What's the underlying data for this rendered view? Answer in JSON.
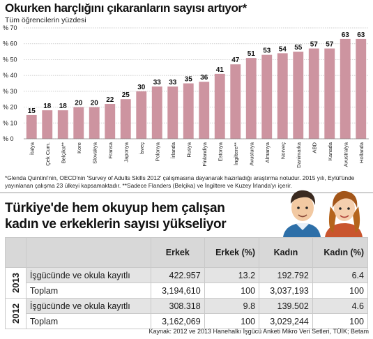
{
  "header": {
    "title": "Okurken harçlığını çıkaranların sayısı artıyor*",
    "subtitle": "Tüm öğrencilerin yüzdesi"
  },
  "chart_data": {
    "type": "bar",
    "categories": [
      "İtalya",
      "Çek Cum.",
      "Belçika**",
      "Kore",
      "Slovakya",
      "Fransa",
      "Japonya",
      "İsveç",
      "Polonya",
      "İrlanda",
      "Rusya",
      "Finlandiya",
      "Estonya",
      "İngiltere**",
      "Avusturya",
      "Almanya",
      "Norveç",
      "Danimarka",
      "ABD",
      "Kanada",
      "Avustralya",
      "Hollanda"
    ],
    "values": [
      15,
      18,
      18,
      20,
      20,
      22,
      25,
      30,
      33,
      33,
      35,
      36,
      41,
      47,
      51,
      53,
      54,
      55,
      57,
      57,
      63,
      63
    ],
    "ylim": [
      0,
      70
    ],
    "yticks": [
      0,
      10,
      20,
      30,
      40,
      50,
      60,
      70
    ],
    "ytick_prefix": "% ",
    "grid": true,
    "colors": {
      "bar": "#cd94a0",
      "grid": "#bdbdbd"
    }
  },
  "footnote": "*Glenda Quintini'nin, OECD'nin 'Survey of Adults Skills 2012' çalışmasına dayanarak hazırladığı araştırma notudur. 2015 yılı, Eylül'ünde yayınlanan çalışma 23 ülkeyi kapsamaktadır. **Sadece Flanders (Belçika) ve İngiltere ve Kuzey İrlanda'yı içerir.",
  "section2": {
    "title_line1": "Türkiye'de hem okuyup hem çalışan",
    "title_line2": "kadın ve erkeklerin sayısı yükseliyor"
  },
  "table": {
    "headers": {
      "erkek": "Erkek",
      "erkek_pct": "Erkek (%)",
      "kadin": "Kadın",
      "kadin_pct": "Kadın (%)"
    },
    "groups": [
      {
        "year": "2013",
        "rows": [
          {
            "label": "İşgücünde ve okula kayıtlı",
            "erkek": "422.957",
            "erkek_pct": "13.2",
            "kadin": "192.792",
            "kadin_pct": "6.4"
          },
          {
            "label": "Toplam",
            "erkek": "3,194,610",
            "erkek_pct": "100",
            "kadin": "3,037,193",
            "kadin_pct": "100"
          }
        ]
      },
      {
        "year": "2012",
        "rows": [
          {
            "label": "İşgücünde ve okula kayıtlı",
            "erkek": "308.318",
            "erkek_pct": "9.8",
            "kadin": "139.502",
            "kadin_pct": "4.6"
          },
          {
            "label": "Toplam",
            "erkek": "3,162,069",
            "erkek_pct": "100",
            "kadin": "3,029,244",
            "kadin_pct": "100"
          }
        ]
      }
    ]
  },
  "source": "Kaynak: 2012 ve 2013 Hanehalkı İşgücü Anketi Mikro Veri Setleri, TÜİK; Betam"
}
